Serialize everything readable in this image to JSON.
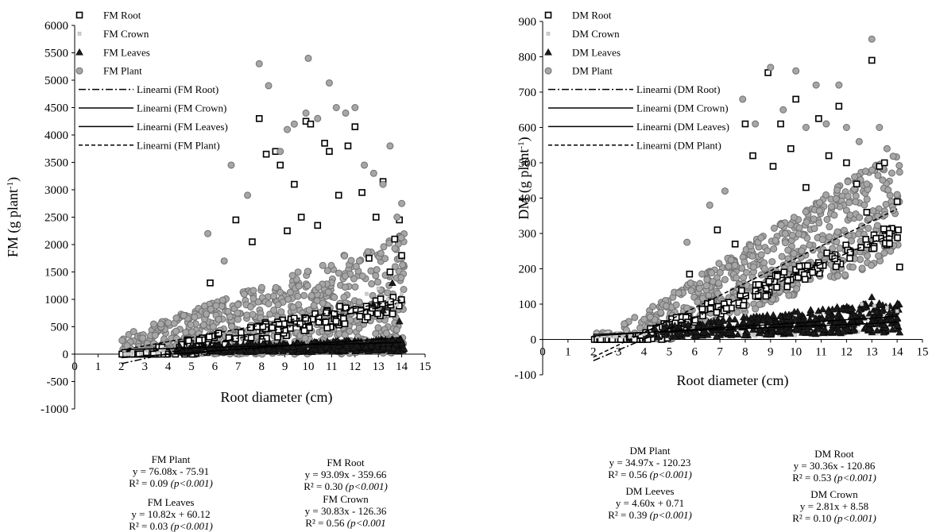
{
  "chart_data": [
    {
      "type": "scatter",
      "title": "",
      "xlabel": "Root diameter (cm)",
      "ylabel": "FM (g plant",
      "ylabel_sup": "-1",
      "ylabel_close": ")",
      "xlim": [
        0,
        15
      ],
      "ylim": [
        -1000,
        6000
      ],
      "x_ticks": [
        "0",
        "1",
        "2",
        "3",
        "4",
        "5",
        "6",
        "7",
        "8",
        "9",
        "10",
        "11",
        "12",
        "13",
        "14",
        "15"
      ],
      "y_ticks": [
        "-1000",
        "-500",
        "0",
        "500",
        "1000",
        "1500",
        "2000",
        "2500",
        "3000",
        "3500",
        "4000",
        "4500",
        "5000",
        "5500",
        "6000"
      ],
      "grid": false,
      "legend_position": "top-inside",
      "legend": [
        {
          "label": "FM Root",
          "marker": "square"
        },
        {
          "label": "FM Crown",
          "marker": "small-square"
        },
        {
          "label": "FM Leaves",
          "marker": "triangle"
        },
        {
          "label": "FM Plant",
          "marker": "circle"
        },
        {
          "label": "Linearni (FM Root)",
          "line": "dash-dot"
        },
        {
          "label": "Linearni (FM Crown)",
          "line": "solid"
        },
        {
          "label": "Linearni (FM Leaves)",
          "line": "solid"
        },
        {
          "label": "Linearni (FM Plant)",
          "line": "dashed"
        }
      ],
      "series": [
        {
          "name": "FM Root",
          "marker": "square",
          "x": [
            5.8,
            6.9,
            7.6,
            7.9,
            8.2,
            8.6,
            8.8,
            9.1,
            9.4,
            9.7,
            9.9,
            10.1,
            10.4,
            10.7,
            10.9,
            11.3,
            11.7,
            12.0,
            12.3,
            12.6,
            12.9,
            13.2,
            13.5,
            13.7,
            13.9,
            14.0
          ],
          "y": [
            1300,
            2450,
            2050,
            4300,
            3650,
            3700,
            3450,
            2250,
            3100,
            2500,
            4250,
            4200,
            2350,
            3850,
            3700,
            2900,
            3800,
            4150,
            2950,
            1750,
            2500,
            3150,
            1500,
            2100,
            2450,
            1800
          ]
        },
        {
          "name": "FM Crown",
          "marker": "small-square",
          "x": [
            12.5,
            13.0,
            13.4,
            13.8,
            14.0
          ],
          "y": [
            1100,
            1200,
            1000,
            900,
            1100
          ]
        },
        {
          "name": "FM Leaves",
          "marker": "triangle",
          "x": [
            12.8,
            13.2,
            13.6,
            13.9,
            14.0,
            14.1
          ],
          "y": [
            900,
            800,
            1300,
            600,
            200,
            100
          ]
        },
        {
          "name": "FM Plant",
          "marker": "circle",
          "x": [
            5.7,
            6.4,
            6.7,
            7.4,
            7.9,
            8.3,
            8.8,
            9.1,
            9.4,
            9.9,
            10.0,
            10.4,
            10.9,
            11.2,
            11.6,
            12.0,
            12.4,
            12.8,
            13.2,
            13.5,
            13.8,
            14.0
          ],
          "y": [
            2200,
            1700,
            3450,
            2900,
            5300,
            4900,
            3700,
            4100,
            4200,
            4400,
            5400,
            4300,
            4950,
            4500,
            4400,
            4500,
            3450,
            3300,
            3100,
            3800,
            2500,
            2750
          ]
        }
      ],
      "trendlines": [
        {
          "name": "Linearni (FM Root)",
          "slope": 93.09,
          "intercept": -359.66,
          "x_range": [
            2,
            14
          ],
          "style": "dash-dot"
        },
        {
          "name": "Linearni (FM Crown)",
          "slope": 30.83,
          "intercept": -126.36,
          "x_range": [
            2,
            14
          ],
          "style": "solid"
        },
        {
          "name": "Linearni (FM Leaves)",
          "slope": 10.82,
          "intercept": 60.12,
          "x_range": [
            2,
            14
          ],
          "style": "solid"
        },
        {
          "name": "Linearni (FM Plant)",
          "slope": 76.08,
          "intercept": -75.91,
          "x_range": [
            2,
            14
          ],
          "style": "dashed"
        }
      ],
      "equations": [
        {
          "name": "FM Plant",
          "eq": "y = 76.08x - 75.91",
          "r2": "R² = 0.09",
          "p": "(p<0.001)"
        },
        {
          "name": "FM Root",
          "eq": "y = 93.09x - 359.66",
          "r2": "R² = 0.30",
          "p": "(p<0.001)"
        },
        {
          "name": "FM Leaves",
          "eq": "y = 10.82x + 60.12",
          "r2": "R² = 0.03",
          "p": "(p<0.001)"
        },
        {
          "name": "FM Crown",
          "eq": "y = 30.83x - 126.36",
          "r2": "R² = 0.56",
          "p": "(p<0.001"
        }
      ]
    },
    {
      "type": "scatter",
      "title": "",
      "xlabel": "Root diameter (cm)",
      "ylabel": "DM (g plant",
      "ylabel_sup": "-1",
      "ylabel_close": ")",
      "xlim": [
        0,
        15
      ],
      "ylim": [
        -100,
        900
      ],
      "x_ticks": [
        "0",
        "1",
        "2",
        "3",
        "4",
        "5",
        "6",
        "7",
        "8",
        "9",
        "10",
        "11",
        "12",
        "13",
        "14",
        "15"
      ],
      "y_ticks": [
        "-100",
        "0",
        "100",
        "200",
        "300",
        "400",
        "500",
        "600",
        "700",
        "800",
        "900"
      ],
      "grid": false,
      "legend_position": "top-inside",
      "legend": [
        {
          "label": "DM Root",
          "marker": "square"
        },
        {
          "label": "DM Crown",
          "marker": "small-square"
        },
        {
          "label": "DM Leaves",
          "marker": "triangle"
        },
        {
          "label": "DM Plant",
          "marker": "circle"
        },
        {
          "label": "Linearni (DM Root)",
          "line": "dash-dot"
        },
        {
          "label": "Linearni (DM Crown)",
          "line": "solid"
        },
        {
          "label": "Linearni (DM Leaves)",
          "line": "solid"
        },
        {
          "label": "Linearni (DM Plant)",
          "line": "dashed"
        }
      ],
      "series": [
        {
          "name": "DM Root",
          "marker": "square",
          "x": [
            5.8,
            6.9,
            7.6,
            8.0,
            8.3,
            8.9,
            9.1,
            9.4,
            9.8,
            10.0,
            10.4,
            10.9,
            11.3,
            11.7,
            12.0,
            12.4,
            12.8,
            13.0,
            13.3,
            13.5,
            13.7,
            14.0,
            14.1
          ],
          "y": [
            185,
            310,
            270,
            610,
            520,
            755,
            490,
            610,
            540,
            680,
            430,
            625,
            520,
            660,
            500,
            440,
            360,
            790,
            490,
            500,
            300,
            390,
            205
          ]
        },
        {
          "name": "DM Crown",
          "marker": "small-square",
          "x": [
            12.6,
            13.1,
            13.6,
            14.0
          ],
          "y": [
            100,
            95,
            90,
            80
          ]
        },
        {
          "name": "DM Leaves",
          "marker": "triangle",
          "x": [
            13.0,
            13.4,
            13.8,
            14.0,
            14.1
          ],
          "y": [
            120,
            80,
            60,
            40,
            20
          ]
        },
        {
          "name": "DM Plant",
          "marker": "circle",
          "x": [
            5.7,
            6.6,
            7.2,
            7.9,
            8.4,
            9.0,
            9.5,
            10.0,
            10.4,
            10.8,
            11.2,
            11.7,
            12.0,
            12.5,
            12.8,
            13.0,
            13.3,
            13.6,
            14.0
          ],
          "y": [
            275,
            380,
            420,
            680,
            610,
            770,
            650,
            760,
            600,
            720,
            610,
            720,
            600,
            560,
            440,
            850,
            600,
            540,
            410
          ]
        }
      ],
      "trendlines": [
        {
          "name": "Linearni (DM Root)",
          "slope": 30.36,
          "intercept": -120.86,
          "x_range": [
            2,
            14
          ],
          "style": "dash-dot"
        },
        {
          "name": "Linearni (DM Crown)",
          "slope": 2.81,
          "intercept": 8.58,
          "x_range": [
            2,
            14
          ],
          "style": "solid"
        },
        {
          "name": "Linearni (DM Leaves)",
          "slope": 4.6,
          "intercept": 0.71,
          "x_range": [
            2,
            14
          ],
          "style": "solid"
        },
        {
          "name": "Linearni (DM Plant)",
          "slope": 34.97,
          "intercept": -120.23,
          "x_range": [
            2,
            14
          ],
          "style": "dashed"
        }
      ],
      "equations": [
        {
          "name": "DM Plant",
          "eq": "y = 34.97x - 120.23",
          "r2": "R² = 0.56",
          "p": "(p<0.001)"
        },
        {
          "name": "DM Root",
          "eq": "y = 30.36x - 120.86",
          "r2": "R² = 0.53",
          "p": "(p<0.001)"
        },
        {
          "name": "DM Leeves",
          "eq": "y = 4.60x + 0.71",
          "r2": "R² = 0.39",
          "p": "(p<0.001)"
        },
        {
          "name": "DM Crown",
          "eq": "y = 2.81x + 8.58",
          "r2": "R² = 0.10",
          "p": "(p<0.001)"
        }
      ]
    }
  ]
}
